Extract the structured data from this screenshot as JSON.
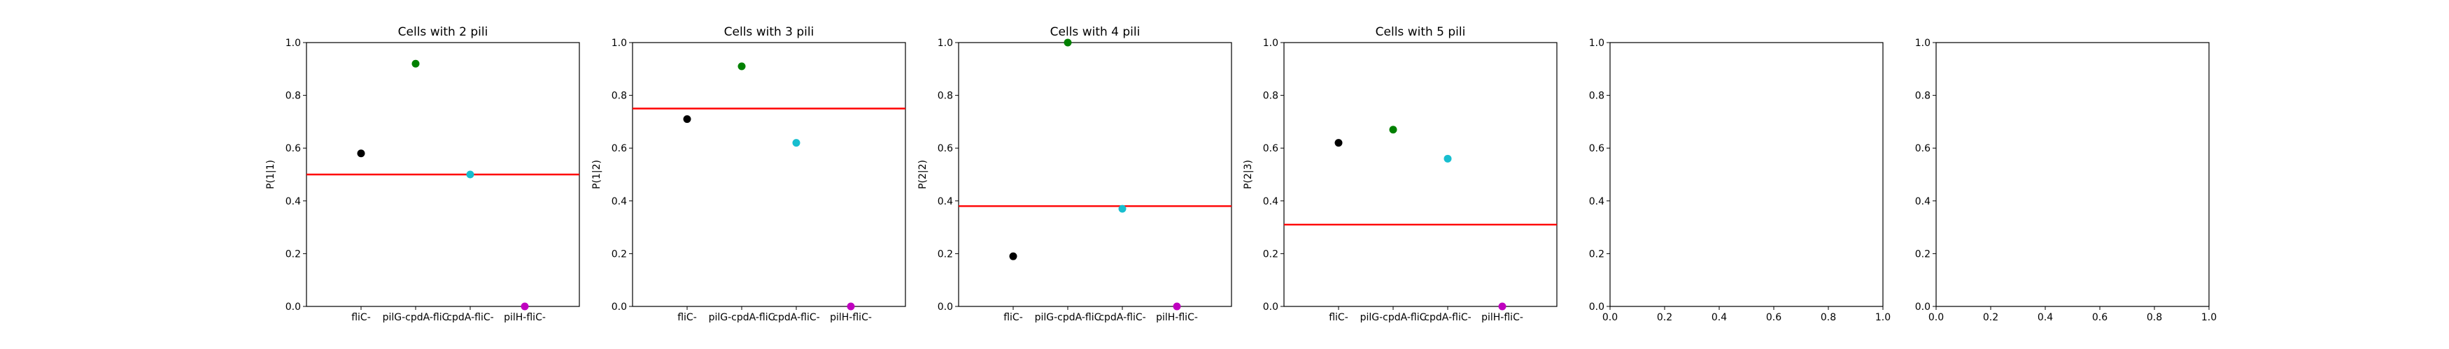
{
  "chart_data": [
    {
      "type": "scatter",
      "title": "Cells with 2 pili",
      "ylabel": "P(1|1)",
      "categories": [
        "fliC-",
        "pilG-cpdA-fliC",
        "cpdA-fliC-",
        "pilH-fliC-"
      ],
      "values": [
        0.58,
        0.92,
        0.5,
        0.0
      ],
      "colors": [
        "#000000",
        "#008000",
        "#17becf",
        "#bf00bf"
      ],
      "reference_line": 0.5,
      "ylim": [
        0,
        1.0
      ],
      "yticks": [
        "0.0",
        "0.2",
        "0.4",
        "0.6",
        "0.8",
        "1.0"
      ]
    },
    {
      "type": "scatter",
      "title": "Cells with 3 pili",
      "ylabel": "P(1|2)",
      "categories": [
        "fliC-",
        "pilG-cpdA-fliC",
        "cpdA-fliC-",
        "pilH-fliC-"
      ],
      "values": [
        0.71,
        0.91,
        0.62,
        0.0
      ],
      "colors": [
        "#000000",
        "#008000",
        "#17becf",
        "#bf00bf"
      ],
      "reference_line": 0.75,
      "ylim": [
        0,
        1.0
      ],
      "yticks": [
        "0.0",
        "0.2",
        "0.4",
        "0.6",
        "0.8",
        "1.0"
      ]
    },
    {
      "type": "scatter",
      "title": "Cells with 4 pili",
      "ylabel": "P(2|2)",
      "categories": [
        "fliC-",
        "pilG-cpdA-fliC",
        "cpdA-fliC-",
        "pilH-fliC-"
      ],
      "values": [
        0.19,
        1.0,
        0.37,
        0.0
      ],
      "colors": [
        "#000000",
        "#008000",
        "#17becf",
        "#bf00bf"
      ],
      "reference_line": 0.38,
      "ylim": [
        0,
        1.0
      ],
      "yticks": [
        "0.0",
        "0.2",
        "0.4",
        "0.6",
        "0.8",
        "1.0"
      ]
    },
    {
      "type": "scatter",
      "title": "Cells with 5 pili",
      "ylabel": "P(2|3)",
      "categories": [
        "fliC-",
        "pilG-cpdA-fliC",
        "cpdA-fliC-",
        "pilH-fliC-"
      ],
      "values": [
        0.62,
        0.67,
        0.56,
        0.0
      ],
      "colors": [
        "#000000",
        "#008000",
        "#17becf",
        "#bf00bf"
      ],
      "reference_line": 0.31,
      "ylim": [
        0,
        1.0
      ],
      "yticks": [
        "0.0",
        "0.2",
        "0.4",
        "0.6",
        "0.8",
        "1.0"
      ]
    },
    {
      "type": "scatter",
      "title": "",
      "ylabel": "",
      "categories": [],
      "values": [],
      "ylim": [
        0,
        1.0
      ],
      "xlim": [
        0,
        1.0
      ],
      "yticks": [
        "0.0",
        "0.2",
        "0.4",
        "0.6",
        "0.8",
        "1.0"
      ],
      "xticks": [
        "0.0",
        "0.2",
        "0.4",
        "0.6",
        "0.8",
        "1.0"
      ]
    },
    {
      "type": "scatter",
      "title": "",
      "ylabel": "",
      "categories": [],
      "values": [],
      "ylim": [
        0,
        1.0
      ],
      "xlim": [
        0,
        1.0
      ],
      "yticks": [
        "0.0",
        "0.2",
        "0.4",
        "0.6",
        "0.8",
        "1.0"
      ],
      "xticks": [
        "0.0",
        "0.2",
        "0.4",
        "0.6",
        "0.8",
        "1.0"
      ]
    }
  ],
  "colors": {
    "reference_line": "#ff0000",
    "axes": "#000000"
  }
}
